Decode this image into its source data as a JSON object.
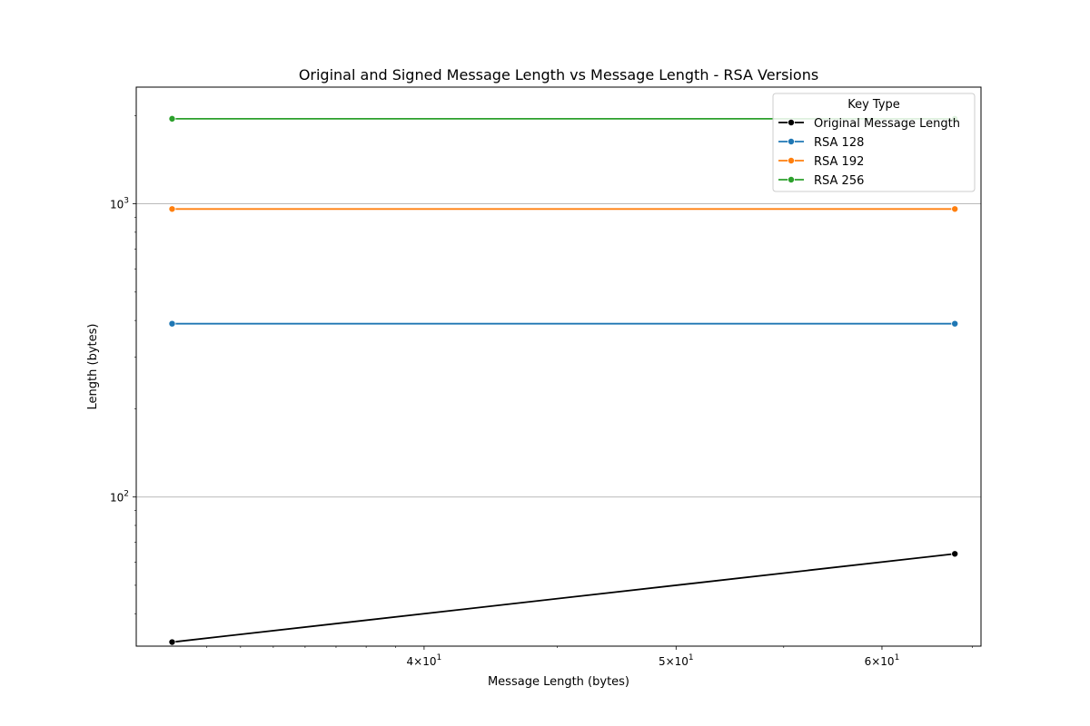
{
  "chart_data": {
    "type": "line",
    "title": "Original and Signed Message Length vs Message Length - RSA Versions",
    "xlabel": "Message Length (bytes)",
    "ylabel": "Length (bytes)",
    "x_scale": "log",
    "y_scale": "log",
    "xlim": [
      31,
      65.5
    ],
    "ylim": [
      31,
      2500
    ],
    "x": [
      32,
      64
    ],
    "grid": {
      "x": false,
      "y": true
    },
    "x_ticks": [
      {
        "value": 40,
        "mantissa": "4",
        "base": "10",
        "exp": "1"
      },
      {
        "value": 50,
        "mantissa": "5",
        "base": "10",
        "exp": "1"
      },
      {
        "value": 60,
        "mantissa": "6",
        "base": "10",
        "exp": "1"
      }
    ],
    "y_ticks": [
      {
        "value": 100,
        "base": "10",
        "exp": "2"
      },
      {
        "value": 1000,
        "base": "10",
        "exp": "3"
      }
    ],
    "legend": {
      "title": "Key Type",
      "placement": "top-right"
    },
    "series": [
      {
        "name": "Original Message Length",
        "color": "#000000",
        "values": [
          32,
          64
        ]
      },
      {
        "name": "RSA 128",
        "color": "#1f77b4",
        "values": [
          390,
          390
        ]
      },
      {
        "name": "RSA 192",
        "color": "#ff7f0e",
        "values": [
          960,
          960
        ]
      },
      {
        "name": "RSA 256",
        "color": "#2ca02c",
        "values": [
          1950,
          1950
        ]
      }
    ]
  }
}
